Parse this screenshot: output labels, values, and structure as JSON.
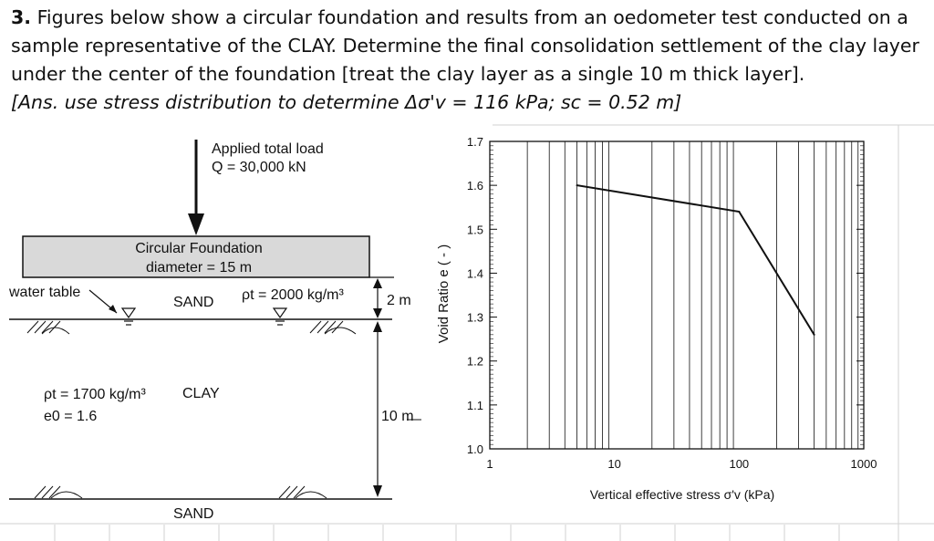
{
  "problem": {
    "number": "3.",
    "statement": "Figures below show a circular foundation and results from an oedometer test conducted on a sample representative of the CLAY. Determine the final consolidation settlement of the clay layer under the center of the foundation [treat the clay layer as a single 10 m thick layer].",
    "answer": "[Ans. use stress distribution to determine Δσ'v = 116 kPa; sc = 0.52 m]"
  },
  "foundation_figure": {
    "load_line1": "Applied total load",
    "load_line2": "Q = 30,000 kN",
    "foundation_line1": "Circular Foundation",
    "foundation_line2": "diameter = 15 m",
    "water_table": "water table",
    "sand_top": "SAND",
    "sand_density": "ρt = 2000 kg/m³",
    "dim_sand": "2 m",
    "clay": "CLAY",
    "clay_density": "ρt = 1700 kg/m³",
    "clay_e0": "e0 = 1.6",
    "dim_clay": "10 m",
    "sand_bottom": "SAND"
  },
  "chart_data": {
    "type": "line",
    "x_scale": "log",
    "xlim": [
      1,
      1000
    ],
    "ylim": [
      1.0,
      1.7
    ],
    "xlabel": "Vertical effective stress σ'v (kPa)",
    "ylabel": "Void Ratio e ( - )",
    "x_ticks": [
      "1",
      "10",
      "100",
      "1000"
    ],
    "y_ticks": [
      "1.7",
      "1.6",
      "1.5",
      "1.4",
      "1.3",
      "1.2",
      "1.1",
      "1.0"
    ],
    "grid": true,
    "series": [
      {
        "x": [
          5,
          100,
          400
        ],
        "y": [
          1.6,
          1.54,
          1.26
        ]
      }
    ]
  }
}
